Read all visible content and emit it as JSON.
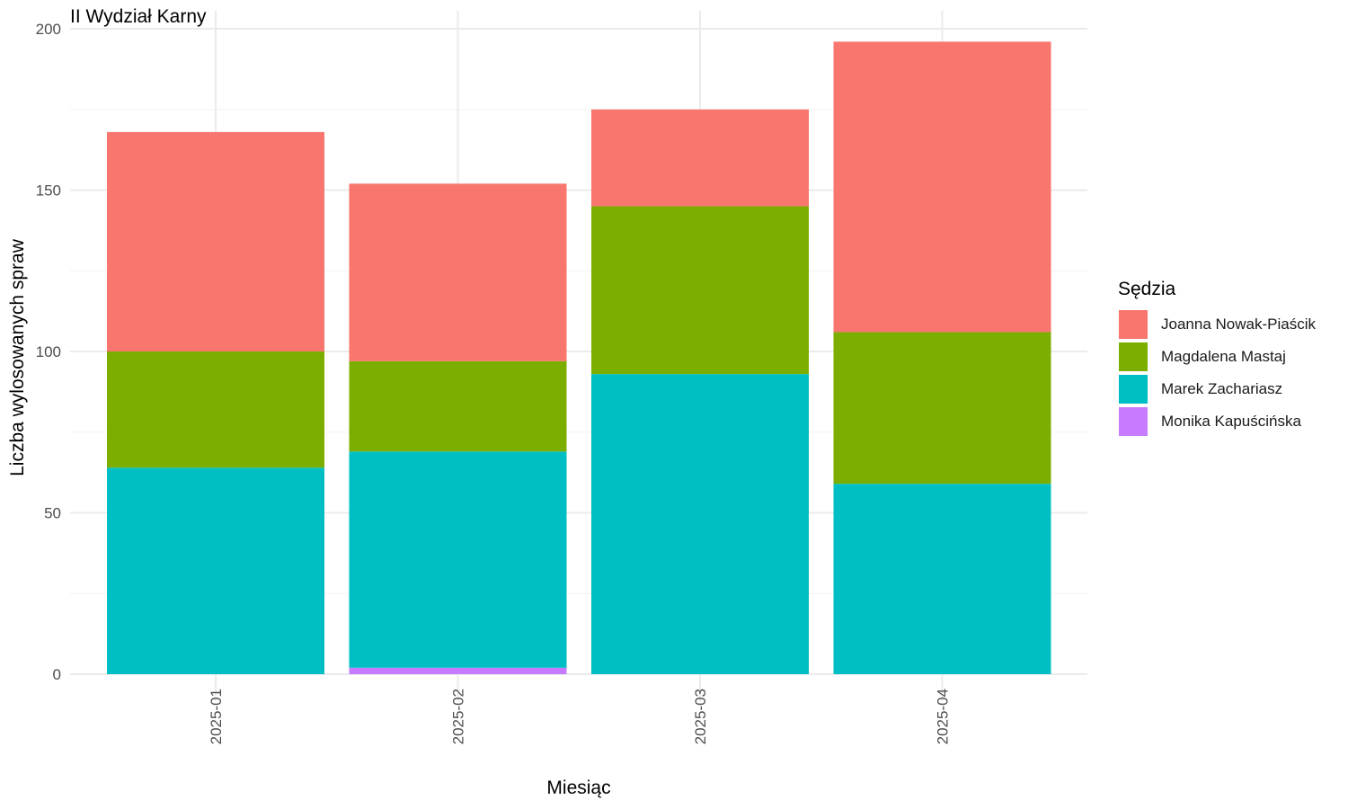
{
  "chart_data": {
    "type": "bar",
    "stacked": true,
    "title": "II Wydział Karny",
    "xlabel": "Miesiąc",
    "ylabel": "Liczba wylosowanych spraw",
    "ylim": [
      0,
      200
    ],
    "yticks": [
      0,
      50,
      100,
      150,
      200
    ],
    "grid": true,
    "categories": [
      "2025-01",
      "2025-02",
      "2025-03",
      "2025-04"
    ],
    "series": [
      {
        "name": "Monika Kapuścińska",
        "color": "#C77CFF",
        "values": [
          0,
          2,
          0,
          0
        ]
      },
      {
        "name": "Marek Zachariasz",
        "color": "#00BFC4",
        "values": [
          64,
          67,
          93,
          59
        ]
      },
      {
        "name": "Magdalena Mastaj",
        "color": "#7CAE00",
        "values": [
          36,
          28,
          52,
          47
        ]
      },
      {
        "name": "Joanna Nowak-Piaścik",
        "color": "#F8766D",
        "values": [
          68,
          55,
          30,
          90
        ]
      }
    ]
  },
  "legend": {
    "title": "Sędzia",
    "position": "right",
    "items": [
      {
        "label": "Joanna Nowak-Piaścik",
        "color": "#F8766D"
      },
      {
        "label": "Magdalena Mastaj",
        "color": "#7CAE00"
      },
      {
        "label": "Marek Zachariasz",
        "color": "#00BFC4"
      },
      {
        "label": "Monika Kapuścińska",
        "color": "#C77CFF"
      }
    ]
  }
}
